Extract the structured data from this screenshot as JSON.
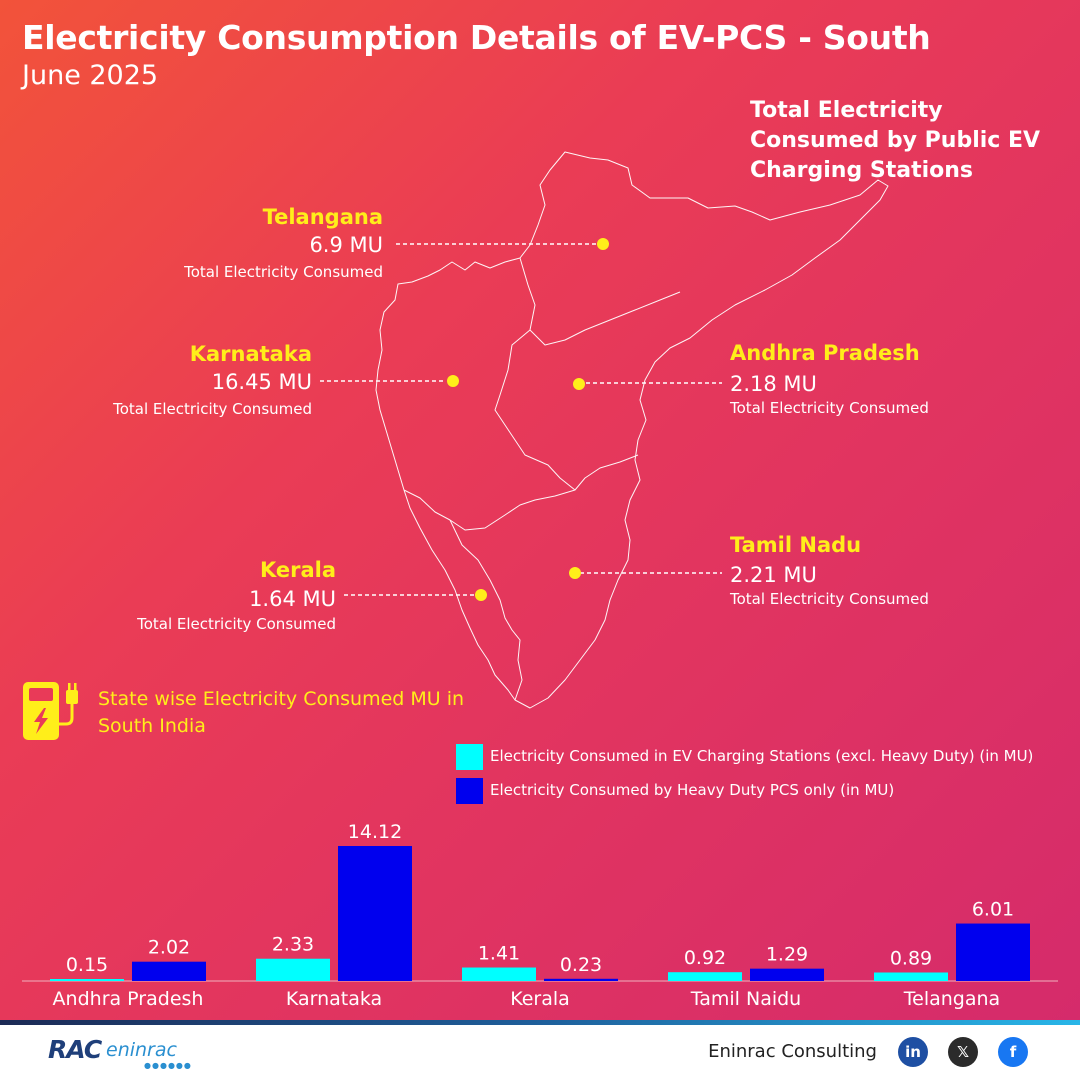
{
  "title": "Electricity Consumption Details of EV-PCS - South",
  "subtitle": "June 2025",
  "map_heading": "Total Electricity Consumed by Public EV Charging Stations",
  "states": {
    "telangana": {
      "name": "Telangana",
      "value": "6.9 MU",
      "caption": "Total Electricity Consumed"
    },
    "karnataka": {
      "name": "Karnataka",
      "value": "16.45 MU",
      "caption": "Total Electricity Consumed"
    },
    "andhra": {
      "name": "Andhra Pradesh",
      "value": "2.18 MU",
      "caption": "Total Electricity Consumed"
    },
    "tamilnadu": {
      "name": "Tamil Nadu",
      "value": "2.21 MU",
      "caption": "Total Electricity Consumed"
    },
    "kerala": {
      "name": "Kerala",
      "value": "1.64 MU",
      "caption": "Total Electricity Consumed"
    }
  },
  "section_title": "State wise Electricity Consumed MU in South India",
  "icons": {
    "charger": "ev-charger-icon",
    "linkedin": "linkedin-icon",
    "x": "x-icon",
    "facebook": "facebook-icon"
  },
  "colors": {
    "series_1": "#00ffff",
    "series_2": "#0000ee",
    "highlight": "#ffee1a"
  },
  "chart_data": {
    "type": "bar",
    "categories": [
      "Andhra Pradesh",
      "Karnataka",
      "Kerala",
      "Tamil Naidu",
      "Telangana"
    ],
    "series": [
      {
        "name": "Electricity Consumed in EV Charging Stations (excl. Heavy Duty) (in MU)",
        "values": [
          0.15,
          2.33,
          1.41,
          0.92,
          0.89
        ],
        "color": "#00ffff"
      },
      {
        "name": "Electricity Consumed by Heavy Duty PCS only (in MU)",
        "values": [
          2.02,
          14.12,
          0.23,
          1.29,
          6.01
        ],
        "color": "#0000ee"
      }
    ],
    "data_labels": [
      [
        "0.15",
        "2.33",
        "1.41",
        "0.92",
        "0.89"
      ],
      [
        "2.02",
        "14.12",
        "0.23",
        "1.29",
        "6.01"
      ]
    ],
    "legend_position": "top-right",
    "grid": false,
    "ylim": [
      0,
      14.12
    ]
  },
  "footer": {
    "logo_primary": "RAC",
    "logo_secondary": "eninrac",
    "company": "Eninrac Consulting"
  }
}
